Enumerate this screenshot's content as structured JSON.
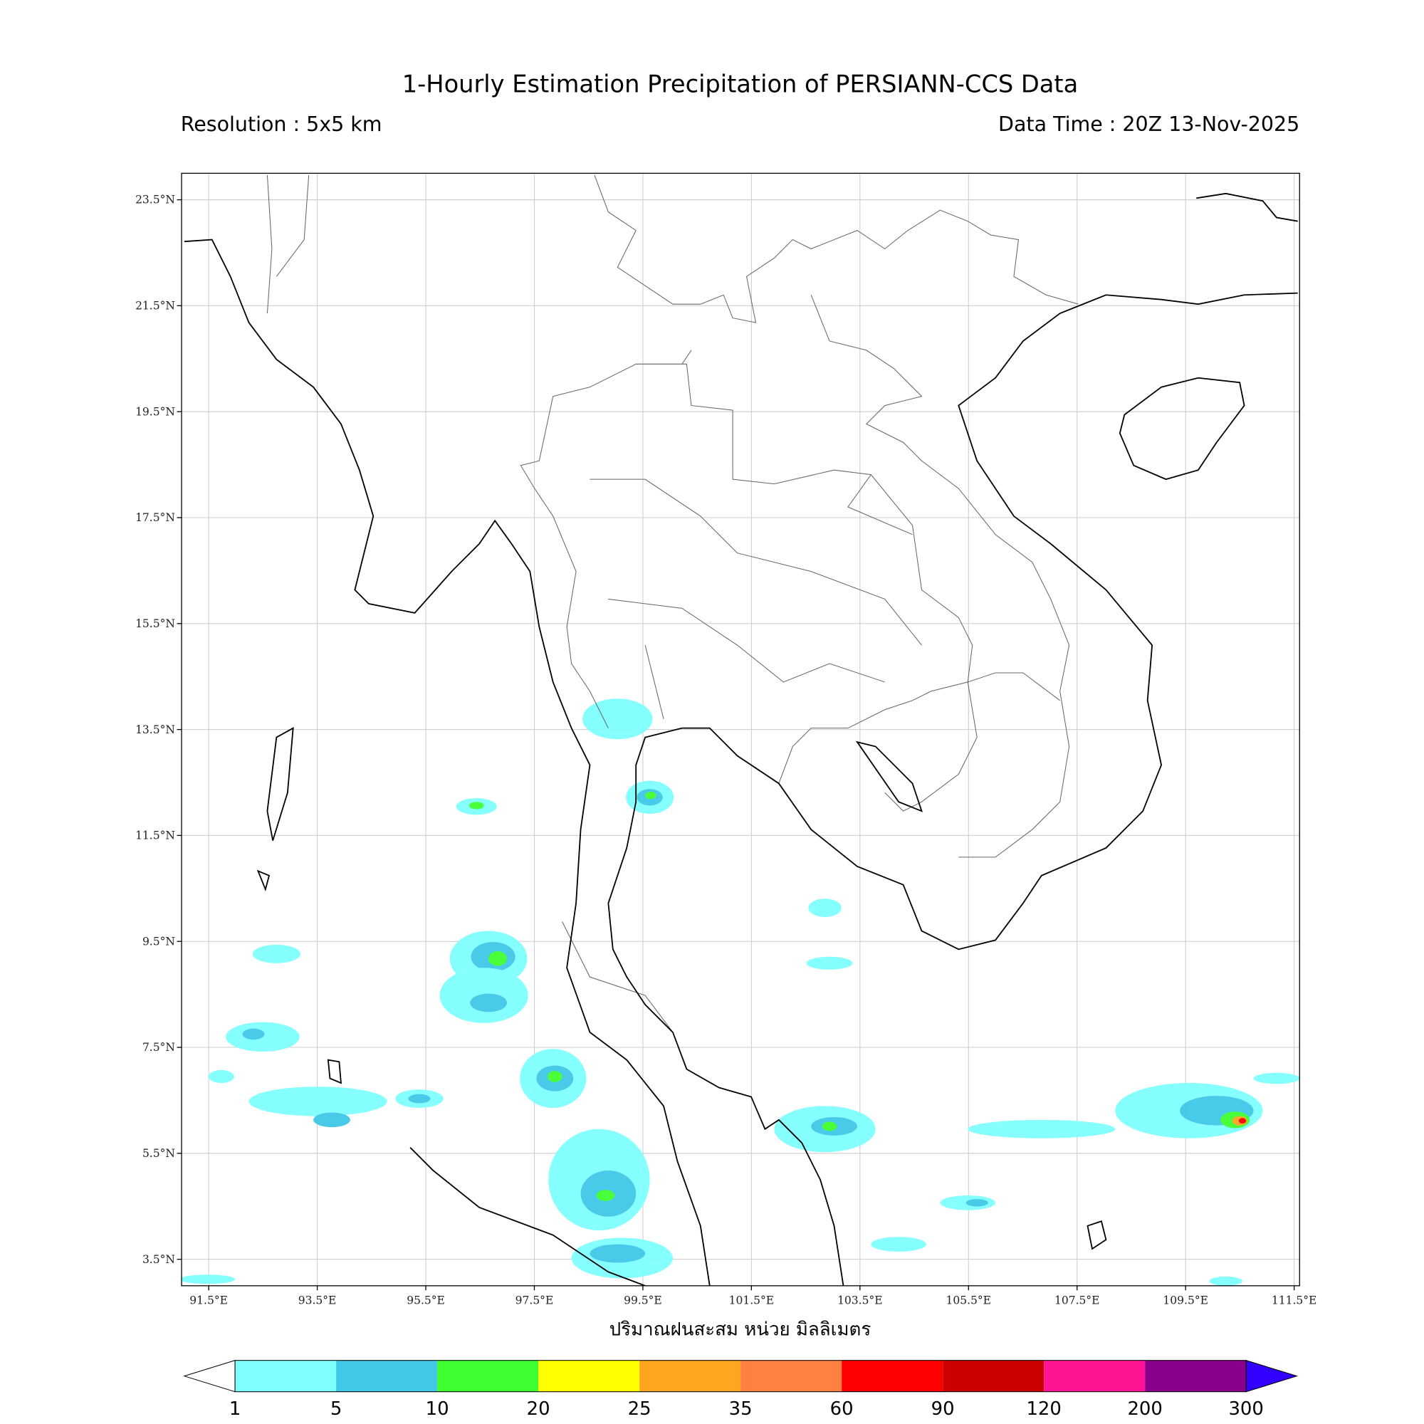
{
  "title": "1-Hourly Estimation Precipitation of PERSIANN-CCS Data",
  "resolution": "Resolution : 5x5 km",
  "data_time": "Data Time : 20Z 13-Nov-2025",
  "map": {
    "lon_range": [
      91,
      111.6
    ],
    "lat_range": [
      3,
      24
    ],
    "lon_ticks": [
      {
        "value": 91.5,
        "label": "91.5°E"
      },
      {
        "value": 93.5,
        "label": "93.5°E"
      },
      {
        "value": 95.5,
        "label": "95.5°E"
      },
      {
        "value": 97.5,
        "label": "97.5°E"
      },
      {
        "value": 99.5,
        "label": "99.5°E"
      },
      {
        "value": 101.5,
        "label": "101.5°E"
      },
      {
        "value": 103.5,
        "label": "103.5°E"
      },
      {
        "value": 105.5,
        "label": "105.5°E"
      },
      {
        "value": 107.5,
        "label": "107.5°E"
      },
      {
        "value": 109.5,
        "label": "109.5°E"
      },
      {
        "value": 111.5,
        "label": "111.5°E"
      }
    ],
    "lat_ticks": [
      {
        "value": 23.5,
        "label": "23.5°N"
      },
      {
        "value": 21.5,
        "label": "21.5°N"
      },
      {
        "value": 19.5,
        "label": "19.5°N"
      },
      {
        "value": 17.5,
        "label": "17.5°N"
      },
      {
        "value": 15.5,
        "label": "15.5°N"
      },
      {
        "value": 13.5,
        "label": "13.5°N"
      },
      {
        "value": 11.5,
        "label": "11.5°N"
      },
      {
        "value": 9.5,
        "label": "9.5°N"
      },
      {
        "value": 7.5,
        "label": "7.5°N"
      },
      {
        "value": 5.5,
        "label": "5.5°N"
      },
      {
        "value": 3.5,
        "label": "3.5°N"
      }
    ],
    "grid": true
  },
  "colorbar": {
    "label": "ปริมาณฝนสะสม หน่วย มิลลิเมตร",
    "bounds": [
      1,
      5,
      10,
      20,
      25,
      35,
      60,
      90,
      120,
      200,
      300
    ],
    "colors": [
      "#80ffff",
      "#40c8e8",
      "#40ff30",
      "#ffff00",
      "#ffa520",
      "#ff8040",
      "#ff0000",
      "#cc0000",
      "#ff1493",
      "#8b008b"
    ],
    "under_color": "#ffffff",
    "over_color": "#3300ff"
  }
}
